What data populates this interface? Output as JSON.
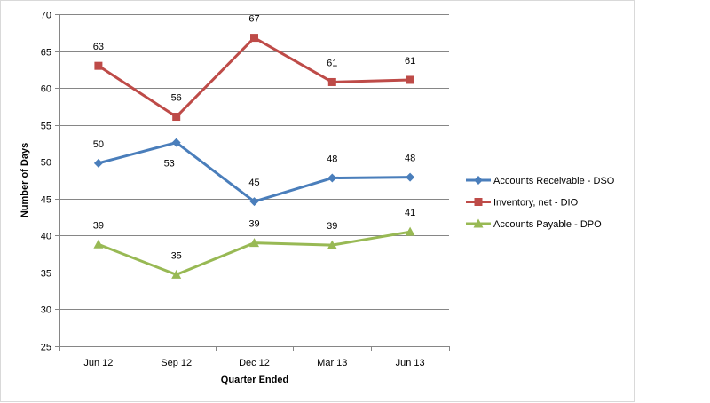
{
  "chart_data": {
    "type": "line",
    "title": "",
    "xlabel": "Quarter Ended",
    "ylabel": "Number of Days",
    "ylim": [
      25,
      70
    ],
    "ytick_step": 5,
    "grid": true,
    "legend_position": "right",
    "categories": [
      "Jun 12",
      "Sep 12",
      "Dec 12",
      "Mar 13",
      "Jun 13"
    ],
    "series": [
      {
        "name": "Accounts Receivable - DSO",
        "color": "#4a7ebb",
        "marker": "diamond",
        "values": [
          49.8,
          52.6,
          44.6,
          47.8,
          47.9
        ],
        "labels": [
          "50",
          "53",
          "45",
          "48",
          "48"
        ],
        "label_placement": [
          "above",
          "below",
          "above",
          "above",
          "above"
        ]
      },
      {
        "name": "Inventory, net - DIO",
        "color": "#be4b48",
        "marker": "square",
        "values": [
          63.0,
          56.1,
          66.8,
          60.8,
          61.1
        ],
        "labels": [
          "63",
          "56",
          "67",
          "61",
          "61"
        ],
        "label_placement": [
          "above",
          "above",
          "above",
          "above",
          "above"
        ]
      },
      {
        "name": "Accounts Payable - DPO",
        "color": "#98b954",
        "marker": "triangle",
        "values": [
          38.8,
          34.7,
          39.0,
          38.7,
          40.5
        ],
        "labels": [
          "39",
          "35",
          "39",
          "39",
          "41"
        ],
        "label_placement": [
          "above",
          "above",
          "above",
          "above",
          "above"
        ]
      }
    ]
  }
}
